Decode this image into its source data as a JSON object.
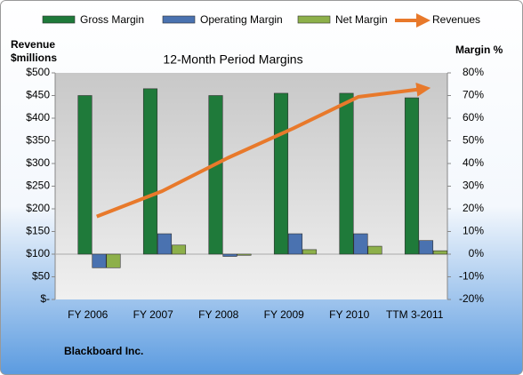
{
  "chart_data": {
    "type": "bar_line_combo",
    "title": "12-Month Period Margins",
    "y_label": [
      "Revenue",
      "$millions"
    ],
    "y2_label": "Margin %",
    "footnote": "Blackboard Inc.",
    "categories": [
      "FY 2006",
      "FY 2007",
      "FY 2008",
      "FY 2009",
      "FY 2010",
      "TTM 3-2011"
    ],
    "ylim": [
      0,
      500
    ],
    "yticks": [
      {
        "value": 0,
        "label": "$-"
      },
      {
        "value": 50,
        "label": "$50"
      },
      {
        "value": 100,
        "label": "$100"
      },
      {
        "value": 150,
        "label": "$150"
      },
      {
        "value": 200,
        "label": "$200"
      },
      {
        "value": 250,
        "label": "$250"
      },
      {
        "value": 300,
        "label": "$300"
      },
      {
        "value": 350,
        "label": "$350"
      },
      {
        "value": 400,
        "label": "$400"
      },
      {
        "value": 450,
        "label": "$450"
      },
      {
        "value": 500,
        "label": "$500"
      }
    ],
    "y2lim": [
      -20,
      80
    ],
    "y2ticks": [
      {
        "value": -20,
        "label": "-20%"
      },
      {
        "value": -10,
        "label": "-10%"
      },
      {
        "value": 0,
        "label": "0%"
      },
      {
        "value": 10,
        "label": "10%"
      },
      {
        "value": 20,
        "label": "20%"
      },
      {
        "value": 30,
        "label": "30%"
      },
      {
        "value": 40,
        "label": "40%"
      },
      {
        "value": 50,
        "label": "50%"
      },
      {
        "value": 60,
        "label": "60%"
      },
      {
        "value": 70,
        "label": "70%"
      },
      {
        "value": 80,
        "label": "80%"
      }
    ],
    "grid": false,
    "legend": "top",
    "series": [
      {
        "name": "Gross Margin",
        "type": "bar",
        "axis": "y2",
        "color": "#1f7a3a",
        "values": [
          70,
          73,
          70,
          71,
          71,
          69
        ]
      },
      {
        "name": "Operating Margin",
        "type": "bar",
        "axis": "y2",
        "color": "#4a72b0",
        "values": [
          -6,
          9,
          -1,
          9,
          9,
          6
        ]
      },
      {
        "name": "Net Margin",
        "type": "bar",
        "axis": "y2",
        "color": "#8db04a",
        "values": [
          -6,
          4,
          -0.5,
          2,
          3.5,
          1.5
        ]
      },
      {
        "name": "Revenues",
        "type": "line",
        "axis": "y",
        "color": "#e8792b",
        "values": [
          183,
          239,
          312,
          377,
          447,
          465
        ]
      }
    ]
  }
}
